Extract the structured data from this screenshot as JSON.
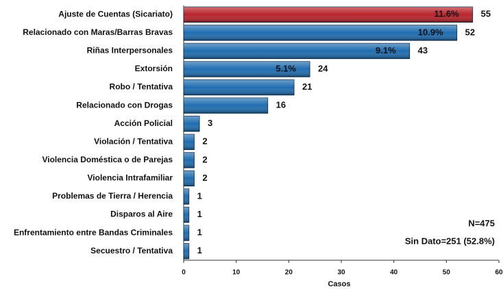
{
  "chart_data": {
    "type": "barh",
    "categories": [
      "Ajuste de Cuentas (Sicariato)",
      "Relacionado con Maras/Barras Bravas",
      "Riñas Interpersonales",
      "Extorsión",
      "Robo / Tentativa",
      "Relacionado con Drogas",
      "Acción Policial",
      "Violación / Tentativa",
      "Violencia Doméstica o de Parejas",
      "Violencia Intrafamiliar",
      "Problemas de Tierra / Herencia",
      "Disparos al Aire",
      "Enfrentamiento entre Bandas Criminales",
      "Secuestro / Tentativa"
    ],
    "values": [
      55,
      52,
      43,
      24,
      21,
      16,
      3,
      2,
      2,
      2,
      1,
      1,
      1,
      1
    ],
    "percent_labels": [
      "11.6%",
      "10.9%",
      "9.1%",
      "5.1%",
      null,
      null,
      null,
      null,
      null,
      null,
      null,
      null,
      null,
      null
    ],
    "colors": [
      "#b8232b",
      "#1f6db0",
      "#1f6db0",
      "#1f6db0",
      "#1f6db0",
      "#1f6db0",
      "#1f6db0",
      "#1f6db0",
      "#1f6db0",
      "#1f6db0",
      "#1f6db0",
      "#1f6db0",
      "#1f6db0",
      "#1f6db0"
    ],
    "x_label": "Casos",
    "xlim": [
      0,
      60
    ],
    "xticks": [
      0,
      10,
      20,
      30,
      40,
      50,
      60
    ],
    "annotations": [
      "N=475",
      "Sin Dato=251 (52.8%)"
    ]
  }
}
